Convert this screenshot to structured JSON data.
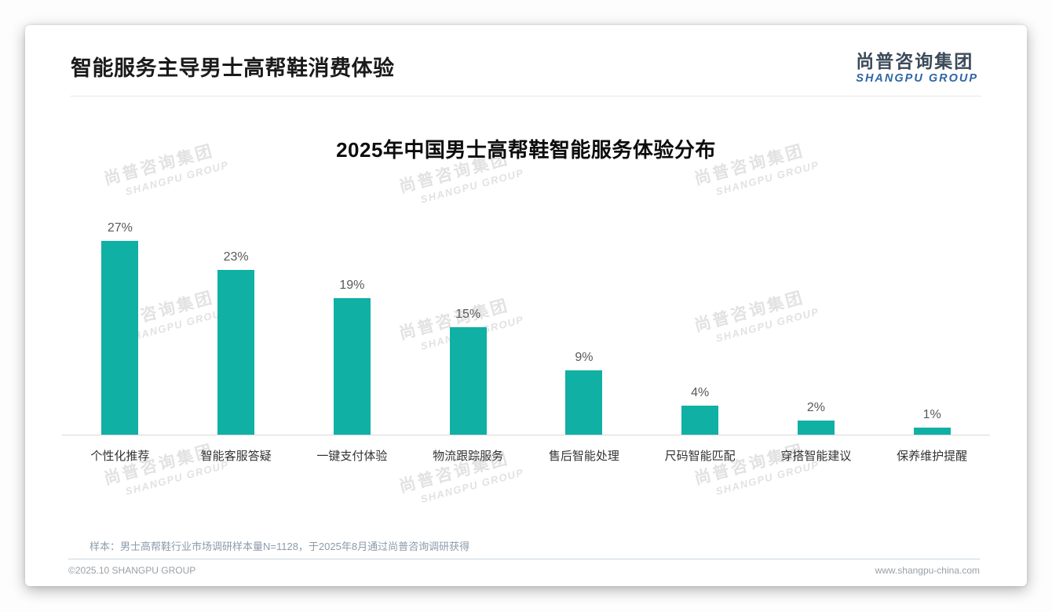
{
  "slide": {
    "title": "智能服务主导男士高帮鞋消费体验",
    "logo": {
      "cn": "尚普咨询集团",
      "en": "SHANGPU GROUP"
    },
    "sample_note": "样本：男士高帮鞋行业市场调研样本量N=1128，于2025年8月通过尚普咨询调研获得",
    "footer": {
      "copyright": "©2025.10 SHANGPU GROUP",
      "website": "www.shangpu-china.com"
    },
    "watermark": {
      "cn": "尚普咨询集团",
      "en": "SHANGPU GROUP"
    }
  },
  "chart_data": {
    "type": "bar",
    "title": "2025年中国男士高帮鞋智能服务体验分布",
    "categories": [
      "个性化推荐",
      "智能客服答疑",
      "一键支付体验",
      "物流跟踪服务",
      "售后智能处理",
      "尺码智能匹配",
      "穿搭智能建议",
      "保养维护提醒"
    ],
    "values": [
      27,
      23,
      19,
      15,
      9,
      4,
      2,
      1
    ],
    "value_suffix": "%",
    "xlabel": "",
    "ylabel": "",
    "ylim": [
      0,
      30
    ],
    "grid": false,
    "legend": false,
    "bar_color": "#10B0A5"
  },
  "colors": {
    "bar_teal": "#10B0A5",
    "logo_cn": "#3C4A5A",
    "logo_en": "#2F66A3",
    "title_text": "#1A1A1A",
    "value_label": "#595959",
    "axis_line": "#D9D9D9",
    "note_text": "#8C9BAB",
    "footer_text": "#9AA0A6",
    "watermark": "#E2E2E2"
  }
}
